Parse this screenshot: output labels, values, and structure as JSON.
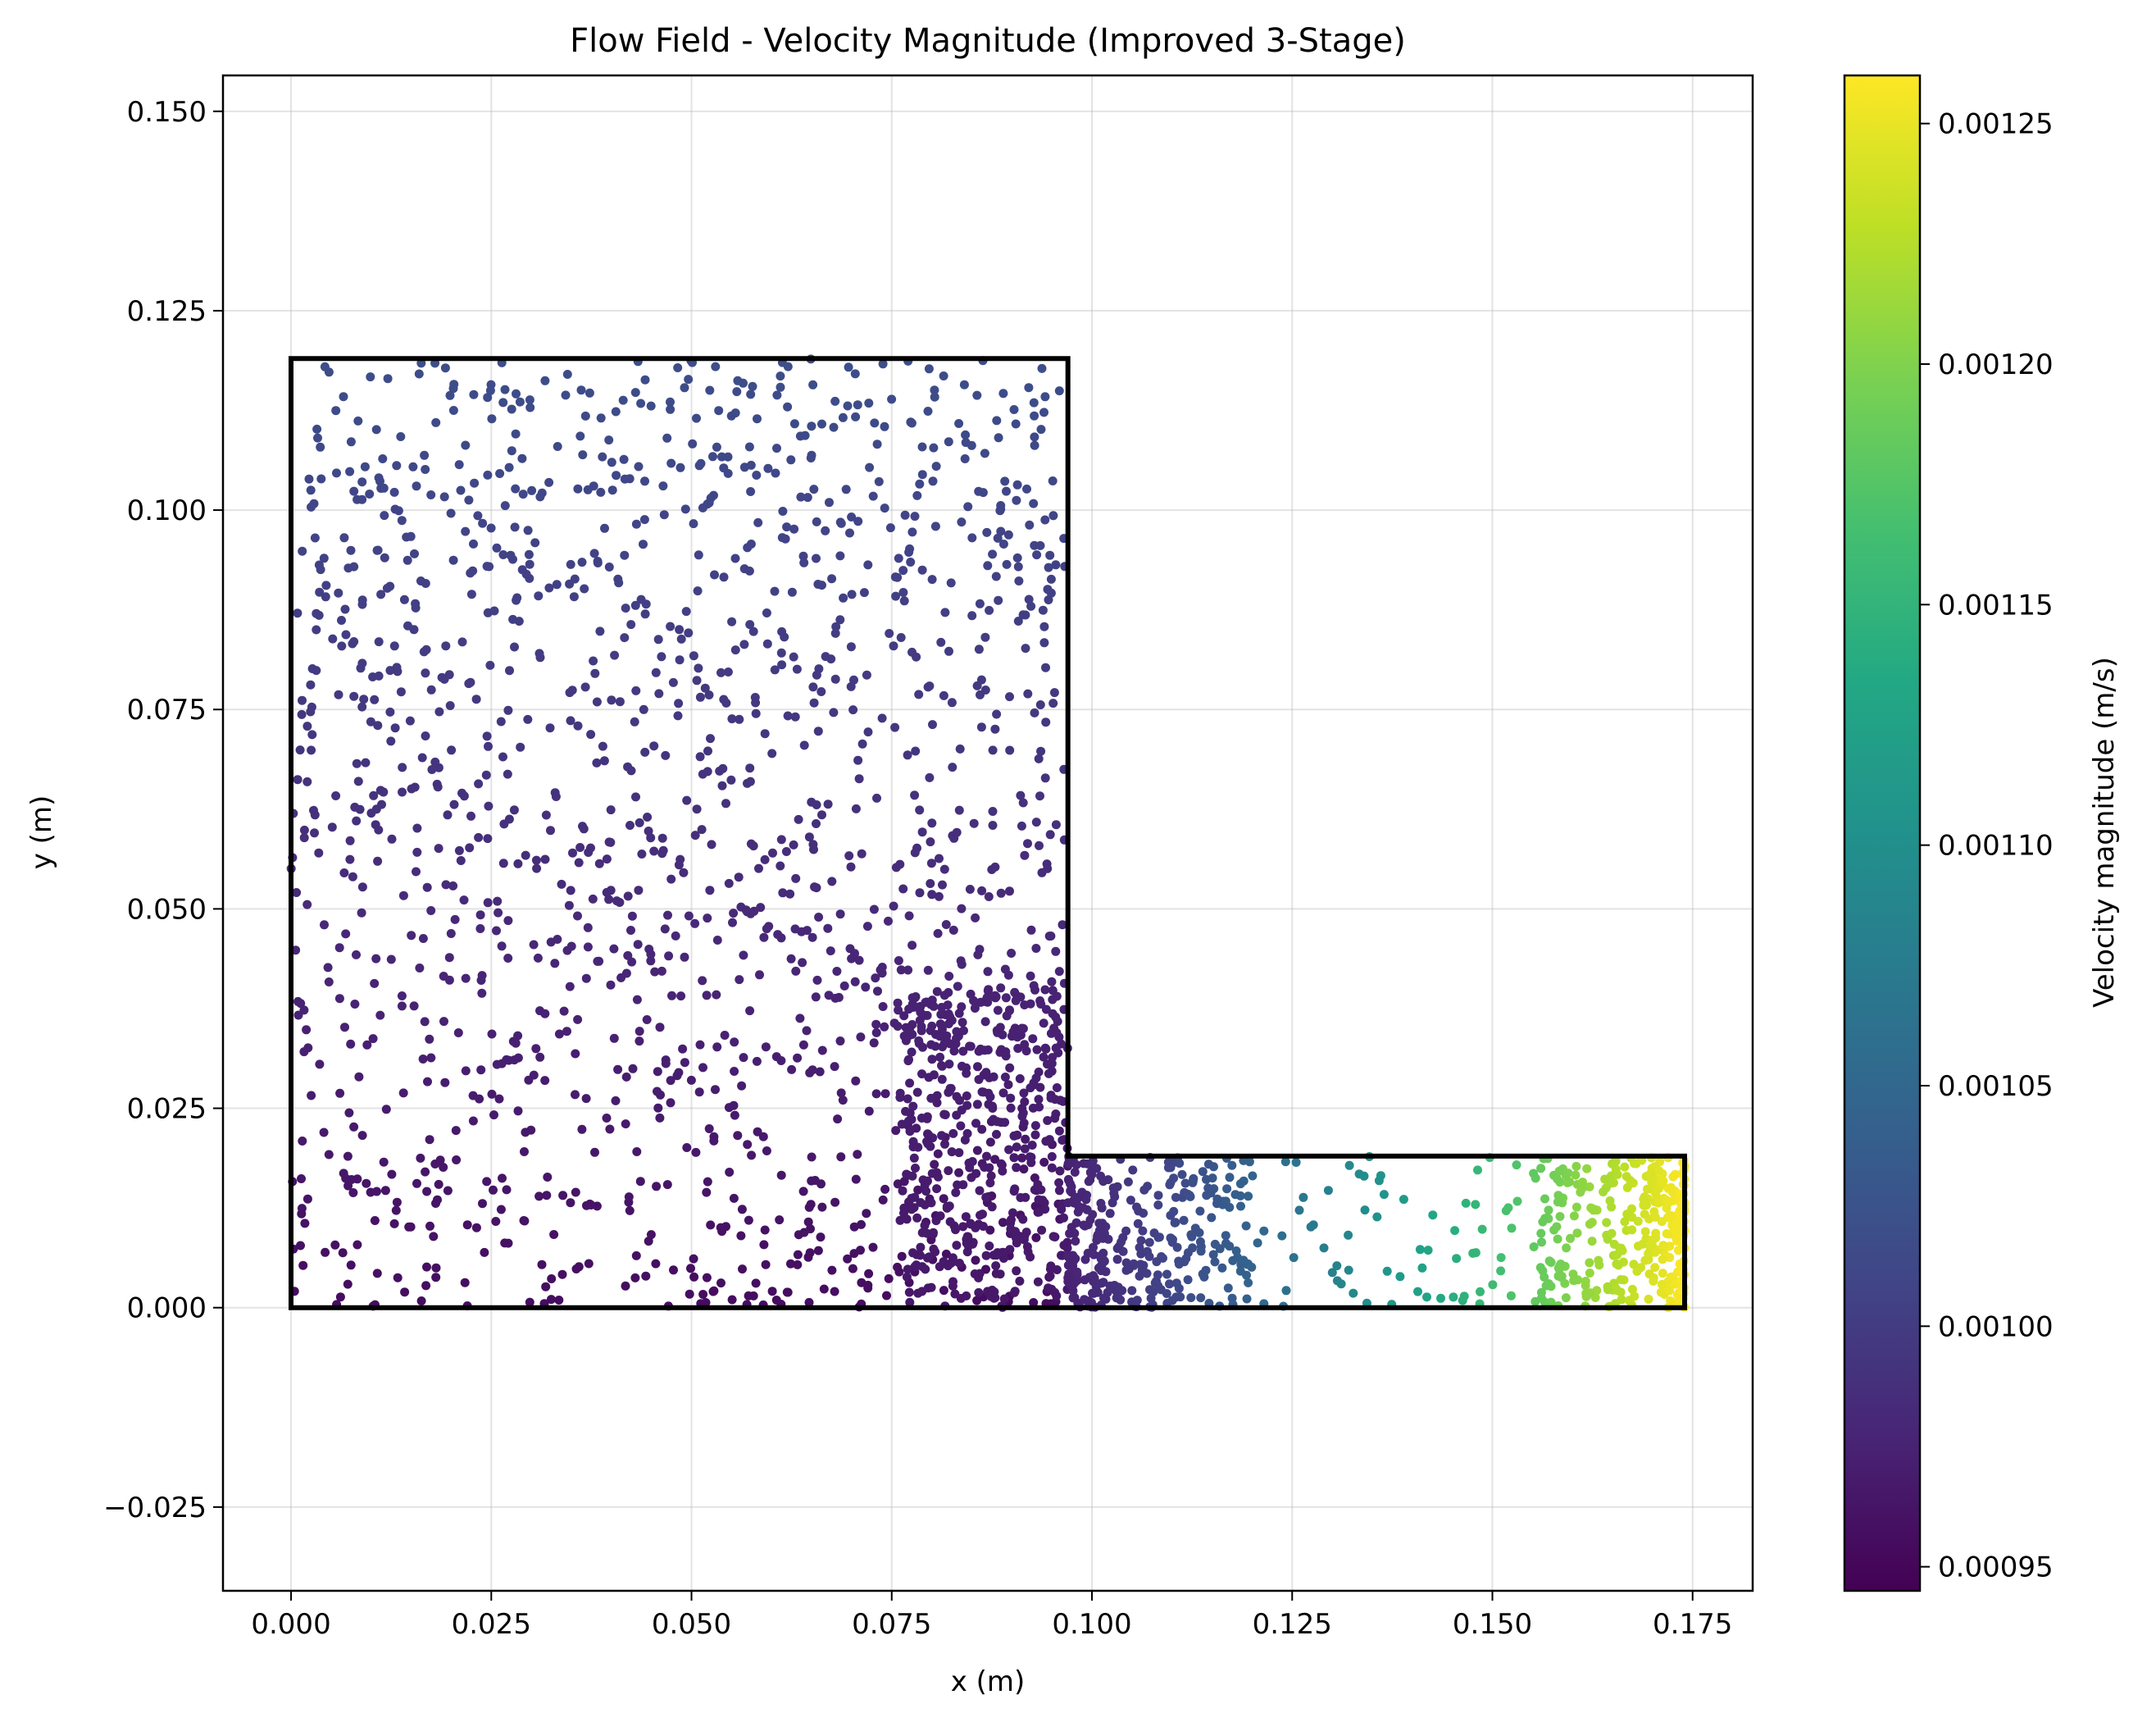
{
  "chart_data": {
    "type": "scatter",
    "title": "Flow Field - Velocity Magnitude (Improved 3-Stage)",
    "xlabel": "x (m)",
    "ylabel": "y (m)",
    "xlim": [
      -0.0085,
      0.1825
    ],
    "ylim": [
      -0.0355,
      0.1545
    ],
    "xticks": [
      "0.000",
      "0.025",
      "0.050",
      "0.075",
      "0.100",
      "0.125",
      "0.150",
      "0.175"
    ],
    "yticks": [
      "−0.025",
      "0.000",
      "0.025",
      "0.050",
      "0.075",
      "0.100",
      "0.125",
      "0.150"
    ],
    "grid": true,
    "colormap": "viridis",
    "colorbar": {
      "label": "Velocity magnitude (m/s)",
      "range": [
        0.000945,
        0.00126
      ],
      "ticks": [
        "0.00095",
        "0.00100",
        "0.00105",
        "0.00110",
        "0.00115",
        "0.00120",
        "0.00125"
      ]
    },
    "domain_outline": [
      [
        0,
        0
      ],
      [
        0.174,
        0
      ],
      [
        0.174,
        0.019
      ],
      [
        0.097,
        0.019
      ],
      [
        0.097,
        0.119
      ],
      [
        0,
        0.119
      ],
      [
        0,
        0
      ]
    ],
    "point_count_estimate": 2600,
    "point_regions": [
      {
        "x": [
          0.0,
          0.097
        ],
        "y": [
          0.0,
          0.119
        ],
        "count": 1500,
        "velocity_bottom": 0.000955,
        "velocity_top": 0.00102
      },
      {
        "x": [
          0.076,
          0.097
        ],
        "y": [
          0.0,
          0.04
        ],
        "count": 420,
        "velocity_bottom": 0.000965,
        "velocity_top": 0.000975
      },
      {
        "x": [
          0.097,
          0.174
        ],
        "y": [
          0.0,
          0.019
        ],
        "count": 700,
        "velocity_left": 0.000975,
        "velocity_right": 0.00126
      }
    ]
  }
}
